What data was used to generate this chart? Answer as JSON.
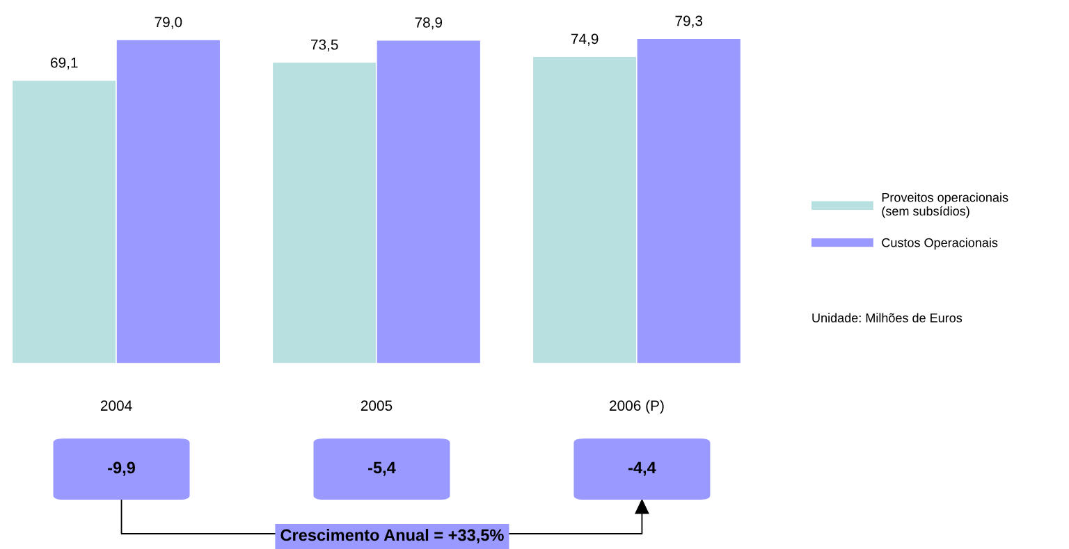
{
  "chart_data": {
    "type": "bar",
    "categories": [
      "2004",
      "2005",
      "2006 (P)"
    ],
    "series": [
      {
        "name": "Proveitos operacionais\n(sem subsídios)",
        "color": "#b9e0e0",
        "values": [
          69.1,
          73.5,
          74.9
        ],
        "value_labels": [
          "69,1",
          "73,5",
          "74,9"
        ]
      },
      {
        "name": "Custos Operacionais",
        "color": "#9999ff",
        "values": [
          79.0,
          78.9,
          79.3
        ],
        "value_labels": [
          "79,0",
          "78,9",
          "79,3"
        ]
      }
    ],
    "tick_labels": "x",
    "legend": "right",
    "grid": false,
    "annotations": [
      "-9,9",
      "-5,4",
      "-4,4",
      "Crescimento Anual = +33,5%",
      "Unidade: Milhões de Euros"
    ]
  }
}
